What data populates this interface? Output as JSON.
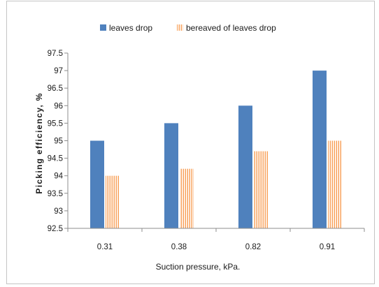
{
  "chart_data": {
    "type": "bar",
    "categories": [
      "0.31",
      "0.38",
      "0.82",
      "0.91"
    ],
    "series": [
      {
        "name": "leaves drop",
        "values": [
          95,
          95.5,
          96,
          97
        ],
        "color": "#4f81bd",
        "striped": false
      },
      {
        "name": "bereaved of leaves drop",
        "values": [
          94,
          94.2,
          94.7,
          95
        ],
        "color": "#f79646",
        "striped": true
      }
    ],
    "xlabel": "Suction pressure, kPa.",
    "ylabel": "Picking efficiency, %",
    "ylim": [
      92.5,
      97.5
    ],
    "yticks": [
      "92.5",
      "93",
      "93.5",
      "94",
      "94.5",
      "95",
      "95.5",
      "96",
      "96.5",
      "97",
      "97.5"
    ],
    "grid": false,
    "legend": "top"
  }
}
